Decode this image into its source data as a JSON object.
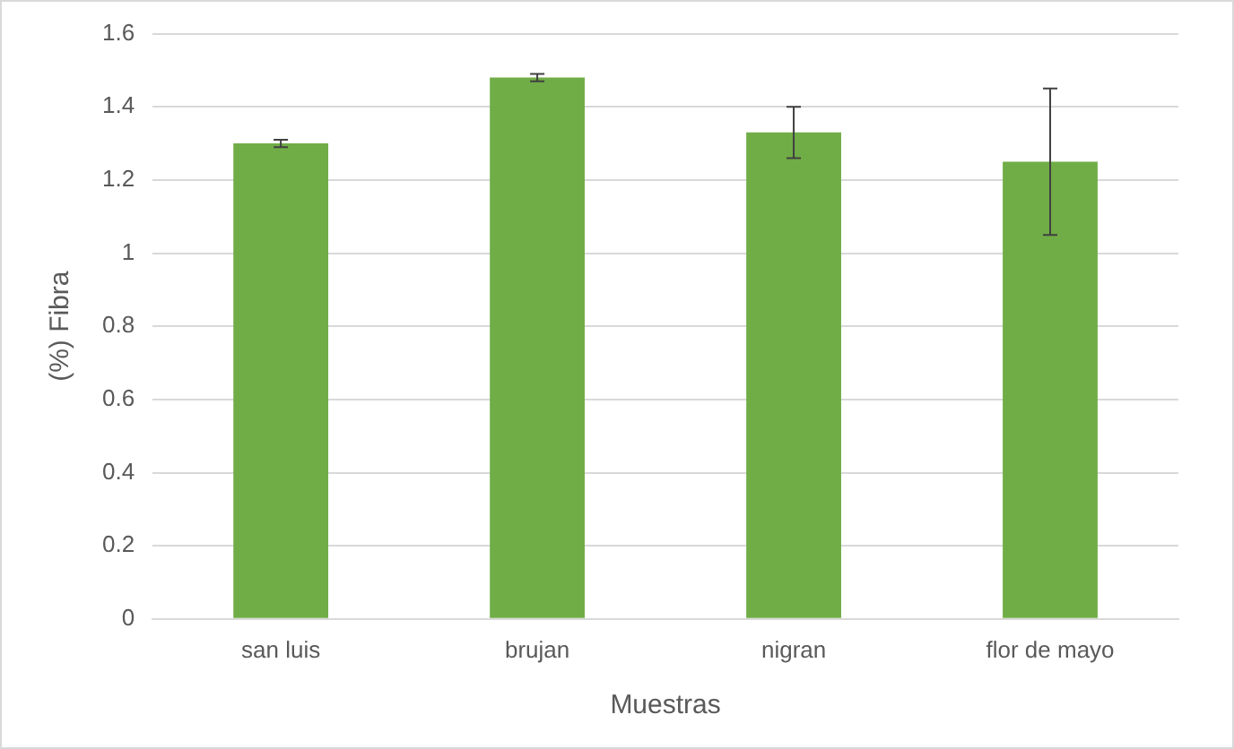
{
  "chart_data": {
    "type": "bar",
    "xlabel": "Muestras",
    "ylabel": "(%) Fibra",
    "categories": [
      "san luis",
      "brujan",
      "nigran",
      "flor de mayo"
    ],
    "values": [
      1.3,
      1.48,
      1.33,
      1.25
    ],
    "errors": [
      0.01,
      0.01,
      0.07,
      0.2
    ],
    "color": "#70ad47",
    "ylim": [
      0,
      1.6
    ],
    "yticks": [
      0,
      0.2,
      0.4,
      0.6,
      0.8,
      1,
      1.2,
      1.4,
      1.6
    ],
    "grid": "y",
    "legend": false
  }
}
